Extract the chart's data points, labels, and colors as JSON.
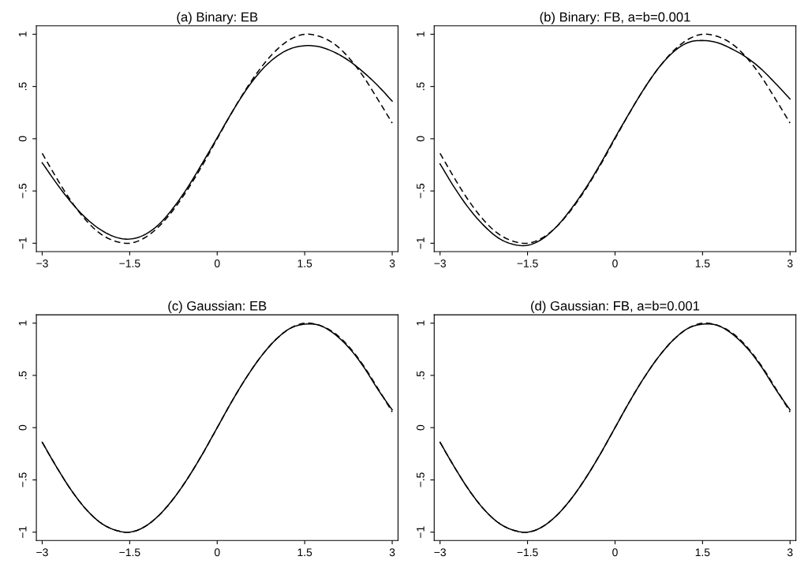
{
  "chart_data": [
    {
      "type": "line",
      "title": "(a) Binary: EB",
      "x": [
        -3,
        -2.75,
        -2.5,
        -2.25,
        -2,
        -1.75,
        -1.5,
        -1.25,
        -1,
        -0.75,
        -0.5,
        -0.25,
        0,
        0.25,
        0.5,
        0.75,
        1,
        1.25,
        1.5,
        1.75,
        2,
        2.25,
        2.5,
        2.75,
        3
      ],
      "series": [
        {
          "color": "#000000",
          "line_style": "dashed",
          "values": [
            -0.14,
            -0.38,
            -0.6,
            -0.78,
            -0.91,
            -0.98,
            -1.0,
            -0.95,
            -0.84,
            -0.68,
            -0.48,
            -0.25,
            0,
            0.25,
            0.48,
            0.68,
            0.84,
            0.95,
            1.0,
            0.98,
            0.91,
            0.78,
            0.6,
            0.38,
            0.15
          ]
        },
        {
          "color": "#000000",
          "line_style": "solid",
          "values": [
            -0.23,
            -0.43,
            -0.61,
            -0.76,
            -0.87,
            -0.94,
            -0.96,
            -0.92,
            -0.82,
            -0.66,
            -0.46,
            -0.23,
            0.01,
            0.25,
            0.47,
            0.65,
            0.78,
            0.86,
            0.89,
            0.88,
            0.83,
            0.75,
            0.64,
            0.51,
            0.36
          ]
        }
      ],
      "xlim": [
        -3.1,
        3.1
      ],
      "ylim": [
        -1.08,
        1.08
      ],
      "xticks": [
        -3,
        -1.5,
        0,
        1.5,
        3
      ],
      "yticks": [
        {
          "value": -1,
          "label": "−1"
        },
        {
          "value": -0.5,
          "label": "−.5"
        },
        0,
        {
          "value": 0.5,
          "label": ".5"
        },
        1
      ],
      "grid": false,
      "legend": false
    },
    {
      "type": "line",
      "title": "(b) Binary: FB, a=b=0.001",
      "x": [
        -3,
        -2.75,
        -2.5,
        -2.25,
        -2,
        -1.75,
        -1.5,
        -1.25,
        -1,
        -0.75,
        -0.5,
        -0.25,
        0,
        0.25,
        0.5,
        0.75,
        1,
        1.25,
        1.5,
        1.75,
        2,
        2.25,
        2.5,
        2.75,
        3
      ],
      "series": [
        {
          "color": "#000000",
          "line_style": "dashed",
          "values": [
            -0.14,
            -0.38,
            -0.6,
            -0.78,
            -0.91,
            -0.98,
            -1.0,
            -0.95,
            -0.84,
            -0.68,
            -0.48,
            -0.25,
            0,
            0.25,
            0.48,
            0.68,
            0.84,
            0.95,
            1.0,
            0.98,
            0.91,
            0.78,
            0.6,
            0.38,
            0.15
          ]
        },
        {
          "color": "#000000",
          "line_style": "solid",
          "values": [
            -0.24,
            -0.47,
            -0.67,
            -0.83,
            -0.95,
            -1.01,
            -1.02,
            -0.96,
            -0.84,
            -0.67,
            -0.47,
            -0.24,
            0.01,
            0.25,
            0.48,
            0.68,
            0.83,
            0.92,
            0.94,
            0.92,
            0.86,
            0.78,
            0.67,
            0.53,
            0.38
          ]
        }
      ],
      "xlim": [
        -3.1,
        3.1
      ],
      "ylim": [
        -1.08,
        1.08
      ],
      "xticks": [
        -3,
        -1.5,
        0,
        1.5,
        3
      ],
      "yticks": [
        {
          "value": -1,
          "label": "−1"
        },
        {
          "value": -0.5,
          "label": "−.5"
        },
        0,
        {
          "value": 0.5,
          "label": ".5"
        },
        1
      ],
      "grid": false,
      "legend": false
    },
    {
      "type": "line",
      "title": "(c) Gaussian: EB",
      "x": [
        -3,
        -2.75,
        -2.5,
        -2.25,
        -2,
        -1.75,
        -1.5,
        -1.25,
        -1,
        -0.75,
        -0.5,
        -0.25,
        0,
        0.25,
        0.5,
        0.75,
        1,
        1.25,
        1.5,
        1.75,
        2,
        2.25,
        2.5,
        2.75,
        3
      ],
      "series": [
        {
          "color": "#000000",
          "line_style": "dashed",
          "values": [
            -0.14,
            -0.38,
            -0.6,
            -0.78,
            -0.91,
            -0.98,
            -1.0,
            -0.95,
            -0.84,
            -0.68,
            -0.48,
            -0.25,
            0,
            0.25,
            0.48,
            0.68,
            0.84,
            0.95,
            1.0,
            0.98,
            0.91,
            0.78,
            0.6,
            0.38,
            0.15
          ]
        },
        {
          "color": "#000000",
          "line_style": "solid",
          "values": [
            -0.14,
            -0.38,
            -0.6,
            -0.78,
            -0.91,
            -0.98,
            -1.0,
            -0.95,
            -0.84,
            -0.68,
            -0.48,
            -0.25,
            0,
            0.25,
            0.48,
            0.68,
            0.84,
            0.95,
            0.99,
            0.98,
            0.9,
            0.77,
            0.59,
            0.37,
            0.17
          ]
        }
      ],
      "xlim": [
        -3.1,
        3.1
      ],
      "ylim": [
        -1.08,
        1.08
      ],
      "xticks": [
        -3,
        -1.5,
        0,
        1.5,
        3
      ],
      "yticks": [
        {
          "value": -1,
          "label": "−1"
        },
        {
          "value": -0.5,
          "label": "−.5"
        },
        0,
        {
          "value": 0.5,
          "label": ".5"
        },
        1
      ],
      "grid": false,
      "legend": false
    },
    {
      "type": "line",
      "title": "(d) Gaussian: FB, a=b=0.001",
      "x": [
        -3,
        -2.75,
        -2.5,
        -2.25,
        -2,
        -1.75,
        -1.5,
        -1.25,
        -1,
        -0.75,
        -0.5,
        -0.25,
        0,
        0.25,
        0.5,
        0.75,
        1,
        1.25,
        1.5,
        1.75,
        2,
        2.25,
        2.5,
        2.75,
        3
      ],
      "series": [
        {
          "color": "#000000",
          "line_style": "dashed",
          "values": [
            -0.14,
            -0.38,
            -0.6,
            -0.78,
            -0.91,
            -0.98,
            -1.0,
            -0.95,
            -0.84,
            -0.68,
            -0.48,
            -0.25,
            0,
            0.25,
            0.48,
            0.68,
            0.84,
            0.95,
            1.0,
            0.98,
            0.91,
            0.78,
            0.6,
            0.38,
            0.15
          ]
        },
        {
          "color": "#000000",
          "line_style": "solid",
          "values": [
            -0.14,
            -0.38,
            -0.6,
            -0.78,
            -0.91,
            -0.98,
            -1.0,
            -0.95,
            -0.84,
            -0.68,
            -0.48,
            -0.25,
            0,
            0.25,
            0.48,
            0.68,
            0.84,
            0.95,
            0.99,
            0.98,
            0.9,
            0.77,
            0.59,
            0.37,
            0.17
          ]
        }
      ],
      "xlim": [
        -3.1,
        3.1
      ],
      "ylim": [
        -1.08,
        1.08
      ],
      "xticks": [
        -3,
        -1.5,
        0,
        1.5,
        3
      ],
      "yticks": [
        {
          "value": -1,
          "label": "−1"
        },
        {
          "value": -0.5,
          "label": "−.5"
        },
        0,
        {
          "value": 0.5,
          "label": ".5"
        },
        1
      ],
      "grid": false,
      "legend": false
    }
  ]
}
